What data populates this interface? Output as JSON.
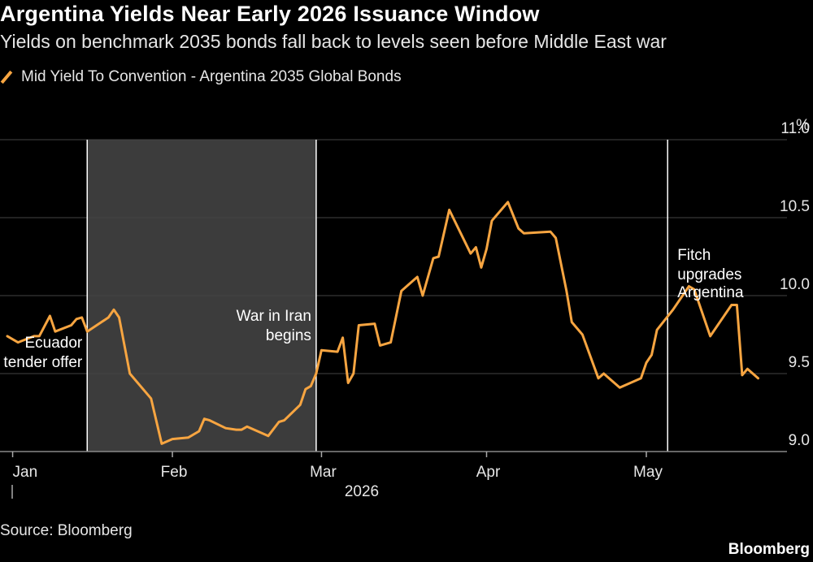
{
  "title": "Argentina Yields Near Early 2026 Issuance Window",
  "subtitle": "Yields on benchmark 2035 bonds fall back to levels seen before Middle East war",
  "legend_label": "Mid Yield To Convention - Argentina 2035 Global Bonds",
  "source": "Source: Bloomberg",
  "brand": "Bloomberg",
  "colors": {
    "background": "#000000",
    "line": "#f7a541",
    "shade": "#3c3c3c",
    "grid": "#444444",
    "text": "#ffffff"
  },
  "chart_data": {
    "type": "line",
    "title": "Argentina Yields Near Early 2026 Issuance Window",
    "subtitle": "Yields on benchmark 2035 bonds fall back to levels seen before Middle East war",
    "ylabel": "%",
    "ylim": [
      9.0,
      11.0
    ],
    "yticks": [
      "9.0",
      "9.5",
      "10.0",
      "10.5",
      "11.0"
    ],
    "y_axis_position": "right",
    "grid": true,
    "legend_position": "top-left",
    "xlim": [
      "2026-01-01",
      "2026-05-31"
    ],
    "x_year_label": "2026",
    "xticks": [
      {
        "label": "Jan",
        "date": "2026-01-02"
      },
      {
        "label": "Feb",
        "date": "2026-02-01"
      },
      {
        "label": "Mar",
        "date": "2026-03-01"
      },
      {
        "label": "Apr",
        "date": "2026-04-01"
      },
      {
        "label": "May",
        "date": "2026-05-01"
      }
    ],
    "shaded_region": {
      "start": "2026-01-16",
      "end": "2026-02-28"
    },
    "annotations": [
      {
        "date": "2026-01-16",
        "lines": [
          "Ecuador",
          "tender offer"
        ],
        "align": "end"
      },
      {
        "date": "2026-02-28",
        "lines": [
          "War in Iran",
          "begins"
        ],
        "align": "end"
      },
      {
        "date": "2026-05-05",
        "lines": [
          "Fitch",
          "upgrades",
          "Argentina"
        ],
        "align": "start"
      }
    ],
    "series": [
      {
        "name": "Mid Yield To Convention - Argentina 2035 Global Bonds",
        "points": [
          [
            "2026-01-01",
            9.74
          ],
          [
            "2026-01-03",
            9.7
          ],
          [
            "2026-01-06",
            9.74
          ],
          [
            "2026-01-07",
            9.74
          ],
          [
            "2026-01-09",
            9.87
          ],
          [
            "2026-01-10",
            9.77
          ],
          [
            "2026-01-13",
            9.81
          ],
          [
            "2026-01-14",
            9.85
          ],
          [
            "2026-01-15",
            9.86
          ],
          [
            "2026-01-16",
            9.77
          ],
          [
            "2026-01-20",
            9.86
          ],
          [
            "2026-01-21",
            9.91
          ],
          [
            "2026-01-22",
            9.86
          ],
          [
            "2026-01-24",
            9.5
          ],
          [
            "2026-01-28",
            9.34
          ],
          [
            "2026-01-30",
            9.05
          ],
          [
            "2026-02-01",
            9.08
          ],
          [
            "2026-02-04",
            9.09
          ],
          [
            "2026-02-06",
            9.13
          ],
          [
            "2026-02-07",
            9.21
          ],
          [
            "2026-02-08",
            9.2
          ],
          [
            "2026-02-11",
            9.15
          ],
          [
            "2026-02-13",
            9.14
          ],
          [
            "2026-02-14",
            9.14
          ],
          [
            "2026-02-15",
            9.16
          ],
          [
            "2026-02-19",
            9.1
          ],
          [
            "2026-02-21",
            9.19
          ],
          [
            "2026-02-22",
            9.2
          ],
          [
            "2026-02-25",
            9.3
          ],
          [
            "2026-02-26",
            9.4
          ],
          [
            "2026-02-27",
            9.42
          ],
          [
            "2026-02-28",
            9.5
          ],
          [
            "2026-03-01",
            9.65
          ],
          [
            "2026-03-04",
            9.64
          ],
          [
            "2026-03-05",
            9.73
          ],
          [
            "2026-03-06",
            9.44
          ],
          [
            "2026-03-07",
            9.5
          ],
          [
            "2026-03-08",
            9.81
          ],
          [
            "2026-03-11",
            9.82
          ],
          [
            "2026-03-12",
            9.68
          ],
          [
            "2026-03-14",
            9.7
          ],
          [
            "2026-03-16",
            10.03
          ],
          [
            "2026-03-19",
            10.12
          ],
          [
            "2026-03-20",
            10.0
          ],
          [
            "2026-03-22",
            10.24
          ],
          [
            "2026-03-23",
            10.25
          ],
          [
            "2026-03-25",
            10.55
          ],
          [
            "2026-03-28",
            10.34
          ],
          [
            "2026-03-29",
            10.27
          ],
          [
            "2026-03-30",
            10.31
          ],
          [
            "2026-03-31",
            10.18
          ],
          [
            "2026-04-01",
            10.3
          ],
          [
            "2026-04-02",
            10.48
          ],
          [
            "2026-04-05",
            10.6
          ],
          [
            "2026-04-07",
            10.43
          ],
          [
            "2026-04-08",
            10.4
          ],
          [
            "2026-04-13",
            10.41
          ],
          [
            "2026-04-14",
            10.37
          ],
          [
            "2026-04-16",
            10.03
          ],
          [
            "2026-04-17",
            9.83
          ],
          [
            "2026-04-19",
            9.75
          ],
          [
            "2026-04-22",
            9.47
          ],
          [
            "2026-04-23",
            9.5
          ],
          [
            "2026-04-24",
            9.47
          ],
          [
            "2026-04-26",
            9.41
          ],
          [
            "2026-04-30",
            9.47
          ],
          [
            "2026-05-01",
            9.57
          ],
          [
            "2026-05-02",
            9.62
          ],
          [
            "2026-05-03",
            9.78
          ],
          [
            "2026-05-06",
            9.91
          ],
          [
            "2026-05-09",
            10.06
          ],
          [
            "2026-05-10",
            10.04
          ],
          [
            "2026-05-13",
            9.74
          ],
          [
            "2026-05-17",
            9.94
          ],
          [
            "2026-05-18",
            9.94
          ],
          [
            "2026-05-19",
            9.49
          ],
          [
            "2026-05-20",
            9.53
          ],
          [
            "2026-05-22",
            9.47
          ]
        ]
      }
    ]
  }
}
